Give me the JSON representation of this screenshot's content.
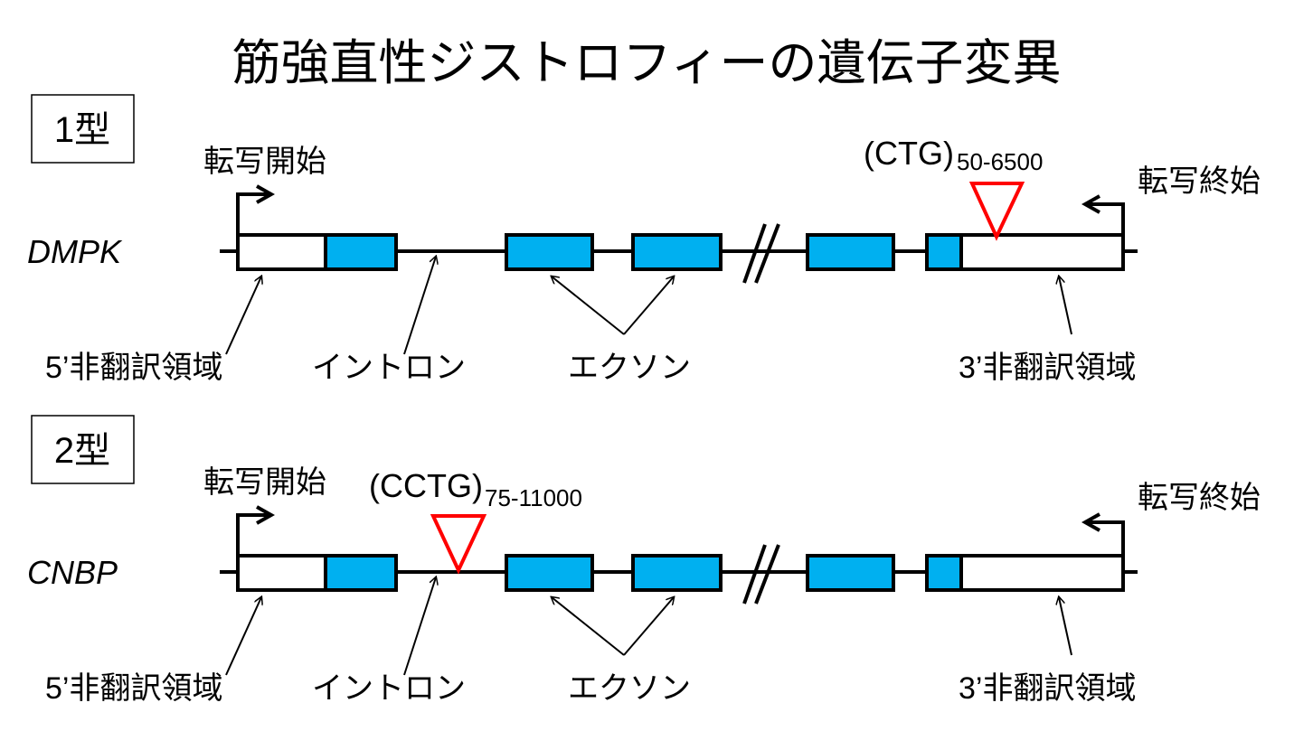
{
  "title": "筋強直性ジストロフィーの遺伝子変異",
  "colors": {
    "exon": "#00b0f0",
    "repeat_marker": "#ff0000",
    "line": "#000000"
  },
  "types": [
    {
      "label": "1型",
      "gene": "DMPK",
      "tx_start": "転写開始",
      "tx_end": "転写終始",
      "repeat": "(CTG)",
      "repeat_range": "50-6500",
      "repeat_location": "3'UTR",
      "labels": {
        "utr5": "5’非翻訳領域",
        "intron": "イントロン",
        "exon": "エクソン",
        "utr3": "3’非翻訳領域"
      }
    },
    {
      "label": "2型",
      "gene": "CNBP",
      "tx_start": "転写開始",
      "tx_end": "転写終始",
      "repeat": "(CCTG)",
      "repeat_range": "75-11000",
      "repeat_location": "intron",
      "labels": {
        "utr5": "5’非翻訳領域",
        "intron": "イントロン",
        "exon": "エクソン",
        "utr3": "3’非翻訳領域"
      }
    }
  ]
}
